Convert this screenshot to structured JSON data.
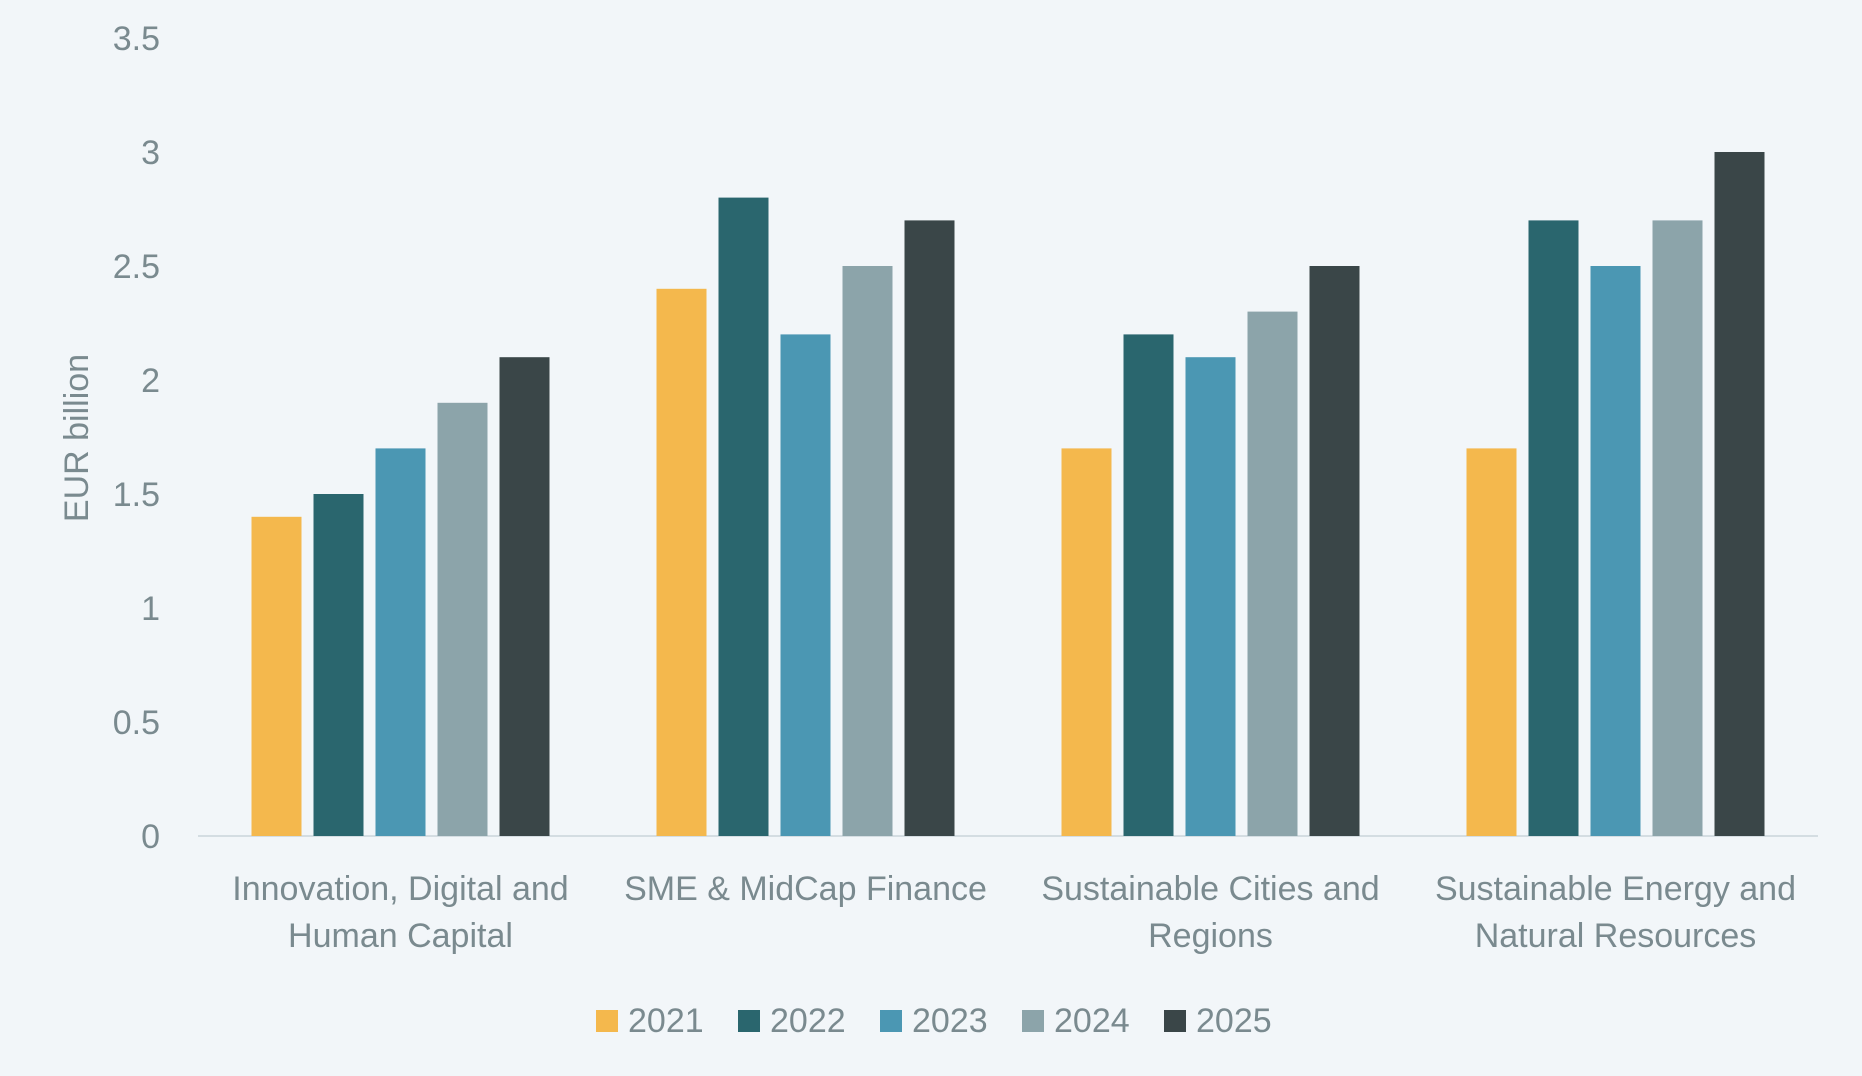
{
  "chart_data": {
    "type": "bar",
    "title": "",
    "xlabel": "",
    "ylabel": "EUR billion",
    "ylim": [
      0,
      3.5
    ],
    "yticks": [
      "0",
      "0.5",
      "1",
      "1.5",
      "2",
      "2.5",
      "3",
      "3.5"
    ],
    "grid": false,
    "legend_position": "bottom",
    "categories": [
      [
        "Innovation, Digital and",
        "Human Capital"
      ],
      [
        "SME & MidCap Finance"
      ],
      [
        "Sustainable Cities and",
        "Regions"
      ],
      [
        "Sustainable Energy and",
        "Natural Resources"
      ]
    ],
    "series": [
      {
        "name": "2021",
        "color": "#f4b84d",
        "values": [
          1.4,
          2.4,
          1.7,
          1.7
        ]
      },
      {
        "name": "2022",
        "color": "#2a666e",
        "values": [
          1.5,
          2.8,
          2.2,
          2.7
        ]
      },
      {
        "name": "2023",
        "color": "#4b97b3",
        "values": [
          1.7,
          2.2,
          2.1,
          2.5
        ]
      },
      {
        "name": "2024",
        "color": "#8ca4aa",
        "values": [
          1.9,
          2.5,
          2.3,
          2.7
        ]
      },
      {
        "name": "2025",
        "color": "#3a4648",
        "values": [
          2.1,
          2.7,
          2.5,
          3.0
        ]
      }
    ]
  }
}
